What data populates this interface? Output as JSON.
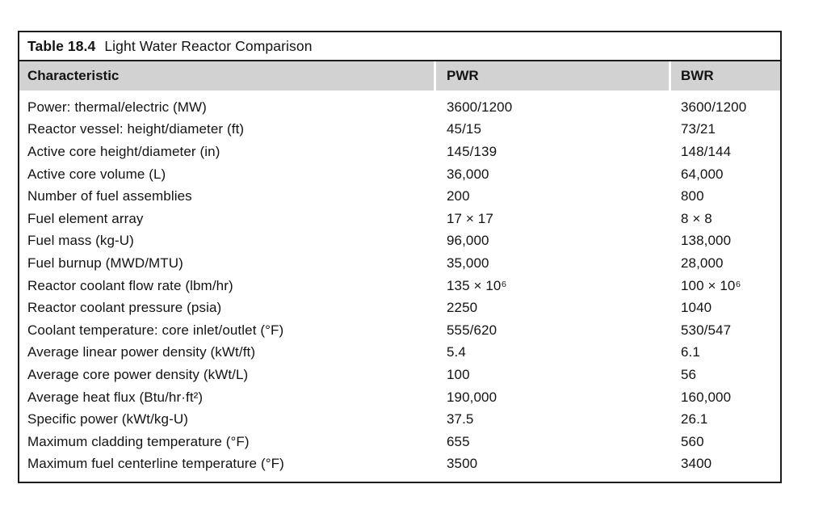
{
  "caption": {
    "label": "Table 18.4",
    "title": "Light Water Reactor Comparison"
  },
  "colors": {
    "header_background": "#d2d2d2",
    "border": "#1c1c1c",
    "text": "#131313",
    "page_background": "#ffffff"
  },
  "table": {
    "columns": [
      "Characteristic",
      "PWR",
      "BWR"
    ],
    "rows": [
      {
        "label": "Power: thermal/electric (MW)",
        "pwr": "3600/1200",
        "bwr": "3600/1200"
      },
      {
        "label": "Reactor vessel: height/diameter (ft)",
        "pwr": "45/15",
        "bwr": "73/21"
      },
      {
        "label": "Active core height/diameter (in)",
        "pwr": "145/139",
        "bwr": "148/144"
      },
      {
        "label": "Active core volume (L)",
        "pwr": "36,000",
        "bwr": "64,000"
      },
      {
        "label": "Number of fuel assemblies",
        "pwr": "200",
        "bwr": "800"
      },
      {
        "label": "Fuel element array",
        "pwr": "17 × 17",
        "bwr": "8 × 8"
      },
      {
        "label": "Fuel mass (kg-U)",
        "pwr": "96,000",
        "bwr": "138,000"
      },
      {
        "label": "Fuel burnup (MWD/MTU)",
        "pwr": "35,000",
        "bwr": "28,000"
      },
      {
        "label": "Reactor coolant flow rate (lbm/hr)",
        "pwr": "135 × 10⁶",
        "bwr": "100 × 10⁶"
      },
      {
        "label": "Reactor coolant pressure (psia)",
        "pwr": "2250",
        "bwr": "1040"
      },
      {
        "label": "Coolant temperature: core inlet/outlet (°F)",
        "pwr": "555/620",
        "bwr": "530/547"
      },
      {
        "label": "Average linear power density (kWt/ft)",
        "pwr": "5.4",
        "bwr": "6.1"
      },
      {
        "label": "Average core power density (kWt/L)",
        "pwr": "100",
        "bwr": "56"
      },
      {
        "label": "Average heat flux (Btu/hr·ft²)",
        "pwr": "190,000",
        "bwr": "160,000"
      },
      {
        "label": "Specific power (kWt/kg-U)",
        "pwr": "37.5",
        "bwr": "26.1"
      },
      {
        "label": "Maximum cladding temperature (°F)",
        "pwr": "655",
        "bwr": "560"
      },
      {
        "label": "Maximum fuel centerline temperature (°F)",
        "pwr": "3500",
        "bwr": "3400"
      }
    ]
  }
}
